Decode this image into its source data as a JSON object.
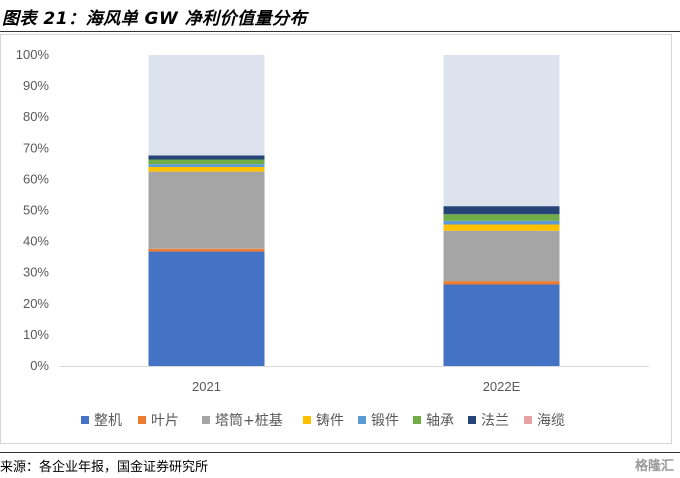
{
  "header": {
    "title": "图表 21：海风单 GW 净利价值量分布"
  },
  "footer": {
    "source": "来源：各企业年报，国金证券研究所",
    "watermark": "格隆汇"
  },
  "colors": {
    "整机": "#4472C4",
    "叶片": "#ED7D31",
    "塔筒+桩基": "#A5A5A5",
    "铸件": "#FFC000",
    "锻件": "#5B9BD5",
    "轴承": "#70AD47",
    "法兰": "#264478",
    "海缆": "#E9A0A0",
    "remainder": "#DCE3EF"
  },
  "chart_data": {
    "type": "bar",
    "stacked": true,
    "categories": [
      "2021",
      "2022E"
    ],
    "ylim": [
      0,
      100
    ],
    "yticks": [
      "0%",
      "10%",
      "20%",
      "30%",
      "40%",
      "50%",
      "60%",
      "70%",
      "80%",
      "90%",
      "100%"
    ],
    "legend_position": "bottom",
    "series": [
      {
        "name": "整机",
        "values": [
          36.8,
          26.2
        ]
      },
      {
        "name": "叶片",
        "values": [
          0.9,
          1.1
        ]
      },
      {
        "name": "塔筒+桩基",
        "values": [
          24.8,
          16.2
        ]
      },
      {
        "name": "铸件",
        "values": [
          1.5,
          2.0
        ]
      },
      {
        "name": "锻件",
        "values": [
          0.9,
          1.2
        ]
      },
      {
        "name": "轴承",
        "values": [
          1.5,
          2.1
        ]
      },
      {
        "name": "法兰",
        "values": [
          1.3,
          2.6
        ]
      },
      {
        "name": "海缆",
        "values": [
          32.3,
          48.6
        ]
      }
    ]
  }
}
